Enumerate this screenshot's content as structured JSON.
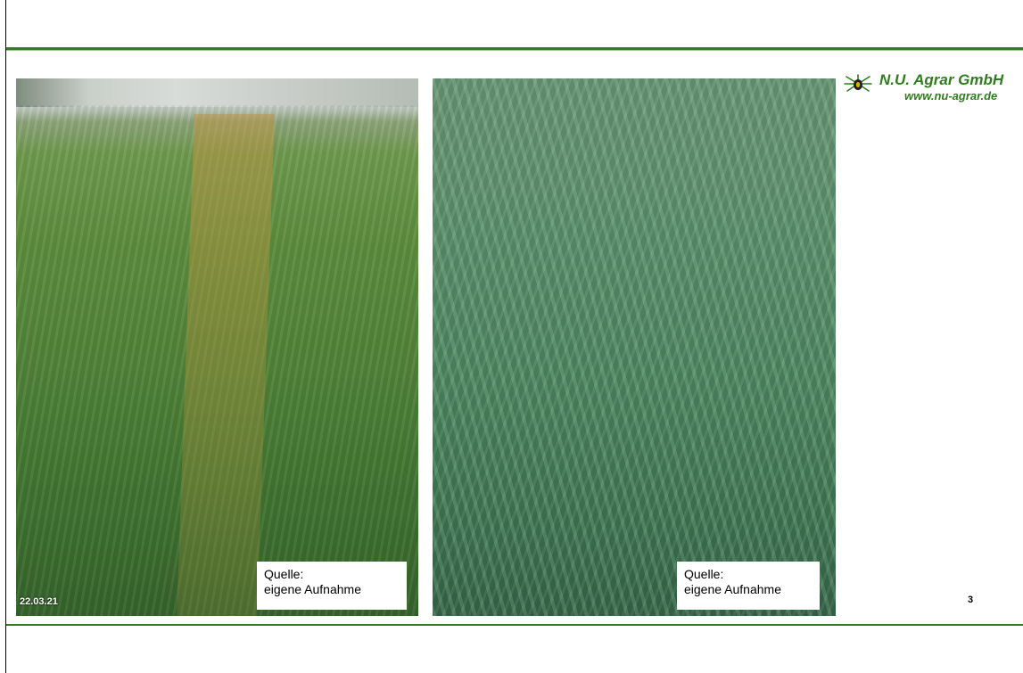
{
  "logo": {
    "title": "N.U. Agrar GmbH",
    "url": "www.nu-agrar.de",
    "icon": "insect-logo-icon"
  },
  "photos": [
    {
      "caption_line1": "Quelle:",
      "caption_line2": "eigene Aufnahme",
      "date": "22.03.21"
    },
    {
      "caption_line1": "Quelle:",
      "caption_line2": "eigene Aufnahme"
    }
  ],
  "page_number": "3",
  "colors": {
    "accent": "#2f7d1e"
  }
}
